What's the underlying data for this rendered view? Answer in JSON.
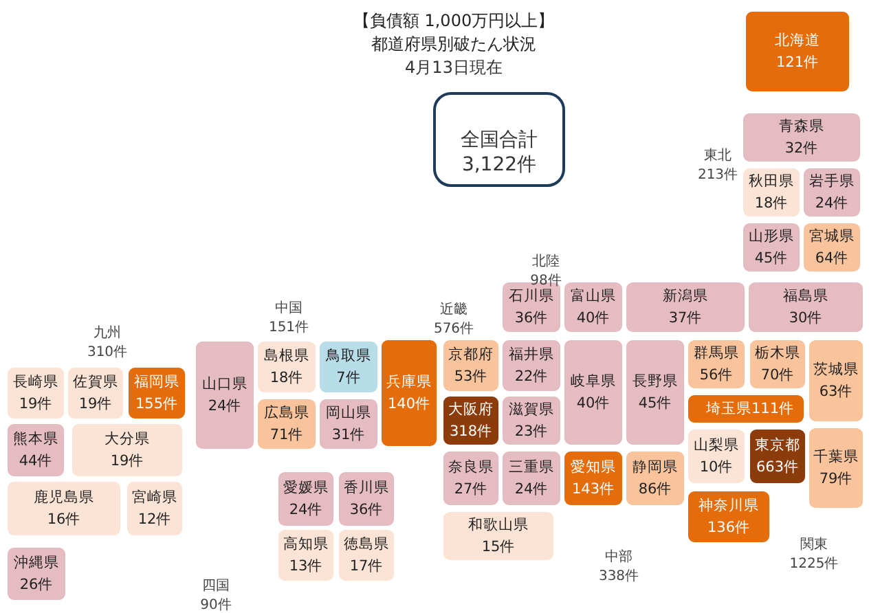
{
  "chart_data": {
    "type": "other",
    "title": "【負債額 1,000万円以上】",
    "subtitle": "都道府県別破たん状況",
    "annotations": [
      "4月13日現在",
      "全国合計\n3,122件",
      "九州\n310件",
      "中国\n151件",
      "四国\n90件",
      "近畿\n576件",
      "北陸\n98件",
      "東北\n213件",
      "中部\n338件",
      "関東\n1225件"
    ],
    "categories": [
      "北海道",
      "青森県",
      "秋田県",
      "岩手県",
      "山形県",
      "宮城県",
      "石川県",
      "富山県",
      "新潟県",
      "福島県",
      "京都府",
      "福井県",
      "岐阜県",
      "長野県",
      "群馬県",
      "栃木県",
      "茨城県",
      "埼玉県",
      "大阪府",
      "滋賀県",
      "山梨県",
      "東京都",
      "千葉県",
      "奈良県",
      "三重県",
      "愛知県",
      "静岡県",
      "神奈川県",
      "和歌山県",
      "兵庫県",
      "山口県",
      "島根県",
      "鳥取県",
      "広島県",
      "岡山県",
      "長崎県",
      "佐賀県",
      "福岡県",
      "熊本県",
      "大分県",
      "鹿児島県",
      "宮崎県",
      "沖縄県",
      "愛媛県",
      "香川県",
      "高知県",
      "徳島県"
    ],
    "values": [
      121,
      32,
      18,
      24,
      45,
      64,
      36,
      40,
      37,
      30,
      53,
      22,
      40,
      45,
      56,
      70,
      63,
      111,
      318,
      23,
      10,
      663,
      79,
      27,
      24,
      143,
      86,
      136,
      15,
      140,
      24,
      18,
      7,
      71,
      31,
      19,
      19,
      155,
      44,
      19,
      16,
      12,
      26,
      24,
      36,
      13,
      17
    ],
    "value_labels": [
      "121件",
      "32件",
      "18件",
      "24件",
      "45件",
      "64件",
      "36件",
      "40件",
      "37件",
      "30件",
      "53件",
      "22件",
      "40件",
      "45件",
      "56件",
      "70件",
      "63件",
      "111件",
      "318件",
      "23件",
      "10件",
      "663件",
      "79件",
      "27件",
      "24件",
      "143件",
      "86件",
      "136件",
      "15件",
      "140件",
      "24件",
      "18件",
      "7件",
      "71件",
      "31件",
      "19件",
      "19件",
      "155件",
      "44件",
      "19件",
      "16件",
      "12件",
      "26件",
      "24件",
      "36件",
      "13件",
      "17件"
    ],
    "colors": [
      "#e46c0a",
      "#e6bcc3",
      "#fbe4d5",
      "#e6bcc3",
      "#e6bcc3",
      "#f9c49c",
      "#e6bcc3",
      "#e6bcc3",
      "#e6bcc3",
      "#e6bcc3",
      "#f9c49c",
      "#e6bcc3",
      "#e6bcc3",
      "#e6bcc3",
      "#f9c49c",
      "#f9c49c",
      "#f9c49c",
      "#e46c0a",
      "#8c3b0a",
      "#e6bcc3",
      "#fbe4d5",
      "#8c3b0a",
      "#f9c49c",
      "#e6bcc3",
      "#e6bcc3",
      "#e46c0a",
      "#f9c49c",
      "#e46c0a",
      "#fbe4d5",
      "#e46c0a",
      "#e6bcc3",
      "#fbe4d5",
      "#b6dde8",
      "#f9c49c",
      "#e6bcc3",
      "#fbe4d5",
      "#fbe4d5",
      "#e46c0a",
      "#e6bcc3",
      "#fbe4d5",
      "#fbe4d5",
      "#fbe4d5",
      "#e6bcc3",
      "#e6bcc3",
      "#e6bcc3",
      "#fbe4d5",
      "#fbe4d5"
    ]
  }
}
